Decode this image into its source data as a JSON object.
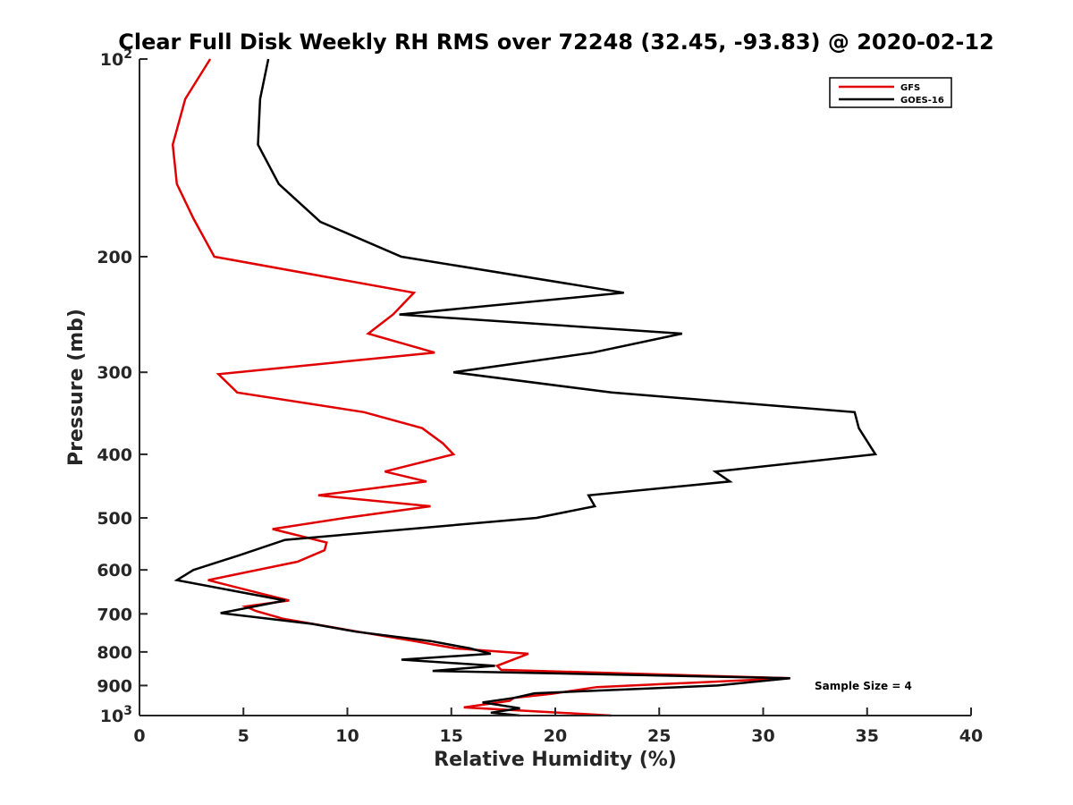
{
  "chart_data": {
    "type": "line",
    "title": "Clear Full Disk Weekly RH RMS over 72248 (32.45, -93.83) @ 2020-02-12",
    "xlabel": "Relative Humidity (%)",
    "ylabel": "Pressure (mb)",
    "xlim": [
      0,
      40
    ],
    "ylim": [
      100,
      1000
    ],
    "yscale": "log",
    "yreverse": true,
    "xticks": [
      0,
      5,
      10,
      15,
      20,
      25,
      30,
      35,
      40
    ],
    "yticks": [
      {
        "value": 100,
        "base": "10",
        "exp": "2"
      },
      {
        "value": 200,
        "label": "200"
      },
      {
        "value": 300,
        "label": "300"
      },
      {
        "value": 400,
        "label": "400"
      },
      {
        "value": 500,
        "label": "500"
      },
      {
        "value": 600,
        "label": "600"
      },
      {
        "value": 700,
        "label": "700"
      },
      {
        "value": 800,
        "label": "800"
      },
      {
        "value": 900,
        "label": "900"
      },
      {
        "value": 1000,
        "base": "10",
        "exp": "3"
      }
    ],
    "legend_position": "top-right",
    "series": [
      {
        "name": "GFS",
        "color": "#e00000",
        "points": [
          [
            3.4,
            100
          ],
          [
            2.2,
            115
          ],
          [
            1.6,
            135
          ],
          [
            1.8,
            155
          ],
          [
            2.6,
            175
          ],
          [
            3.6,
            200
          ],
          [
            13.2,
            227
          ],
          [
            12.2,
            245
          ],
          [
            11.0,
            262
          ],
          [
            14.2,
            280
          ],
          [
            3.8,
            302
          ],
          [
            4.7,
            322
          ],
          [
            10.8,
            345
          ],
          [
            13.6,
            365
          ],
          [
            14.6,
            385
          ],
          [
            15.1,
            400
          ],
          [
            11.8,
            425
          ],
          [
            13.8,
            440
          ],
          [
            8.6,
            462
          ],
          [
            14.0,
            480
          ],
          [
            9.9,
            500
          ],
          [
            6.4,
            520
          ],
          [
            9.0,
            545
          ],
          [
            8.9,
            560
          ],
          [
            7.6,
            583
          ],
          [
            3.3,
            622
          ],
          [
            6.1,
            655
          ],
          [
            7.2,
            668
          ],
          [
            5.1,
            682
          ],
          [
            5.6,
            693
          ],
          [
            6.9,
            712
          ],
          [
            10.5,
            745
          ],
          [
            13.2,
            770
          ],
          [
            15.2,
            790
          ],
          [
            18.7,
            805
          ],
          [
            17.2,
            840
          ],
          [
            17.4,
            852
          ],
          [
            31.3,
            877
          ],
          [
            22.0,
            905
          ],
          [
            19.8,
            927
          ],
          [
            18.0,
            940
          ],
          [
            17.8,
            950
          ],
          [
            15.6,
            972
          ],
          [
            22.7,
            1000
          ]
        ]
      },
      {
        "name": "GOES-16",
        "color": "#000000",
        "points": [
          [
            6.2,
            100
          ],
          [
            5.8,
            115
          ],
          [
            5.7,
            135
          ],
          [
            6.7,
            155
          ],
          [
            8.7,
            177
          ],
          [
            12.6,
            200
          ],
          [
            23.3,
            227
          ],
          [
            12.5,
            245
          ],
          [
            26.1,
            262
          ],
          [
            21.8,
            280
          ],
          [
            15.1,
            300
          ],
          [
            22.7,
            322
          ],
          [
            34.4,
            345
          ],
          [
            34.6,
            365
          ],
          [
            35.4,
            400
          ],
          [
            27.7,
            425
          ],
          [
            28.4,
            440
          ],
          [
            21.6,
            462
          ],
          [
            21.9,
            480
          ],
          [
            19.1,
            500
          ],
          [
            7.0,
            540
          ],
          [
            4.8,
            570
          ],
          [
            2.6,
            600
          ],
          [
            1.8,
            622
          ],
          [
            7.0,
            668
          ],
          [
            3.9,
            698
          ],
          [
            8.3,
            725
          ],
          [
            10.4,
            745
          ],
          [
            14.0,
            770
          ],
          [
            15.9,
            790
          ],
          [
            16.9,
            805
          ],
          [
            12.6,
            822
          ],
          [
            17.1,
            840
          ],
          [
            14.1,
            855
          ],
          [
            31.3,
            877
          ],
          [
            27.8,
            900
          ],
          [
            19.0,
            925
          ],
          [
            18.0,
            940
          ],
          [
            16.5,
            955
          ],
          [
            18.3,
            975
          ],
          [
            16.9,
            990
          ],
          [
            18.3,
            1000
          ]
        ]
      }
    ],
    "annotations": [
      "Sample Size = 4"
    ]
  }
}
